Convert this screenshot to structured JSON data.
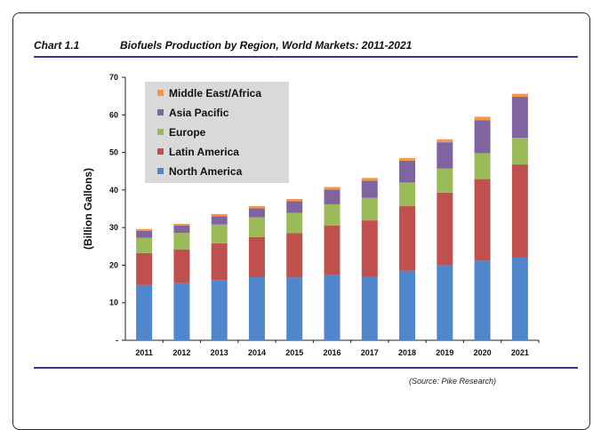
{
  "header": {
    "chart_label": "Chart 1.1",
    "title": "Biofuels Production by Region, World Markets: 2011-2021"
  },
  "footer": {
    "source": "(Source: Pike Research)"
  },
  "chart_data": {
    "type": "bar",
    "stacked": true,
    "title": "Biofuels Production by Region, World Markets: 2011-2021",
    "xlabel": "",
    "ylabel": "(Billion Gallons)",
    "ylim": [
      0,
      70
    ],
    "yticks": [
      {
        "value": 0,
        "label": "-"
      },
      {
        "value": 10,
        "label": "10"
      },
      {
        "value": 20,
        "label": "20"
      },
      {
        "value": 30,
        "label": "30"
      },
      {
        "value": 40,
        "label": "40"
      },
      {
        "value": 50,
        "label": "50"
      },
      {
        "value": 60,
        "label": "60"
      },
      {
        "value": 70,
        "label": "70"
      }
    ],
    "grid": false,
    "legend_position": "top-left",
    "categories": [
      "2011",
      "2012",
      "2013",
      "2014",
      "2015",
      "2016",
      "2017",
      "2018",
      "2019",
      "2020",
      "2021"
    ],
    "series": [
      {
        "name": "North America",
        "color": "#4f86cc",
        "values": [
          14.7,
          15.2,
          16.0,
          16.8,
          16.7,
          17.3,
          16.9,
          18.5,
          20.0,
          21.2,
          22.0
        ]
      },
      {
        "name": "Latin America",
        "color": "#c0504d",
        "values": [
          8.5,
          9.0,
          9.8,
          10.7,
          11.8,
          13.2,
          15.0,
          17.2,
          19.3,
          21.7,
          24.8
        ]
      },
      {
        "name": "Europe",
        "color": "#9bbb59",
        "values": [
          4.1,
          4.4,
          5.0,
          5.2,
          5.4,
          5.7,
          6.0,
          6.3,
          6.4,
          6.9,
          7.1
        ]
      },
      {
        "name": "Asia Pacific",
        "color": "#8064a2",
        "values": [
          1.8,
          1.9,
          2.2,
          2.4,
          3.1,
          3.9,
          4.6,
          5.8,
          7.0,
          8.8,
          10.9
        ]
      },
      {
        "name": "Middle East/Africa",
        "color": "#f79646",
        "values": [
          0.5,
          0.5,
          0.6,
          0.6,
          0.6,
          0.7,
          0.7,
          0.7,
          0.8,
          0.9,
          0.8
        ]
      }
    ]
  }
}
